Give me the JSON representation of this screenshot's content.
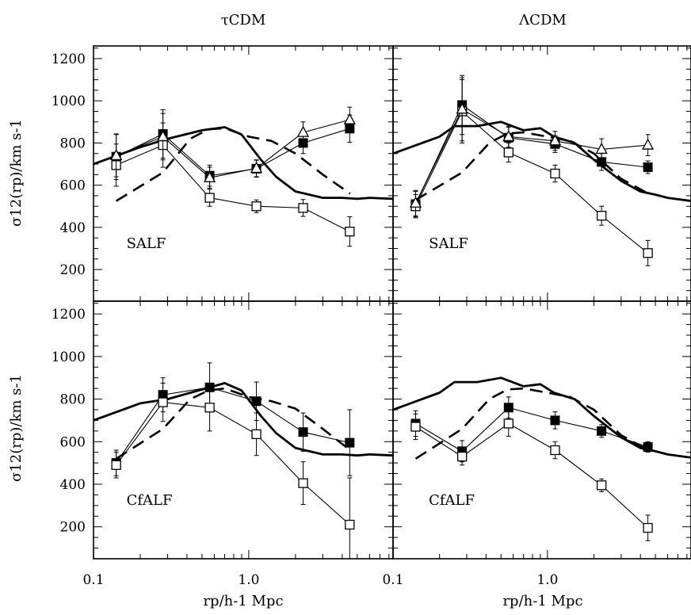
{
  "header": {
    "left_title": "τCDM",
    "right_title": "ΛCDM"
  },
  "axes": {
    "ylabel": "σ12(rp)/km s-1",
    "xlabel": "rp/h-1 Mpc",
    "x_ticklabels": [
      "0.1",
      "1.0",
      "0.1",
      "1.0"
    ],
    "y_ticklabels": [
      "200",
      "400",
      "600",
      "800",
      "1000",
      "1200"
    ],
    "xscale": "log",
    "xlim": [
      0.1,
      8.5
    ],
    "ylim": [
      50,
      1260
    ]
  },
  "chart_data": [
    {
      "type": "line",
      "model": "τCDM",
      "label": "SALF",
      "curves": {
        "solid": [
          [
            0.1,
            700
          ],
          [
            0.2,
            780
          ],
          [
            0.3,
            820
          ],
          [
            0.5,
            860
          ],
          [
            0.7,
            875
          ],
          [
            0.9,
            840
          ],
          [
            1.2,
            720
          ],
          [
            1.5,
            640
          ],
          [
            2.0,
            570
          ],
          [
            3.0,
            540
          ],
          [
            4.0,
            540
          ],
          [
            5.0,
            535
          ],
          [
            6.0,
            540
          ],
          [
            8.5,
            535
          ]
        ],
        "dashed": [
          [
            0.14,
            525
          ],
          [
            0.28,
            660
          ],
          [
            0.42,
            820
          ],
          [
            0.55,
            865
          ],
          [
            0.7,
            870
          ],
          [
            1.0,
            830
          ],
          [
            1.4,
            810
          ],
          [
            2.0,
            750
          ],
          [
            3.0,
            650
          ],
          [
            4.5,
            560
          ]
        ]
      },
      "series": [
        {
          "marker": "filled-square",
          "x": [
            0.14,
            0.28,
            0.56,
            1.12,
            2.24,
            4.47
          ],
          "y": [
            735,
            843,
            645,
            678,
            800,
            868
          ],
          "err": [
            108,
            115,
            50,
            40,
            50,
            65
          ]
        },
        {
          "marker": "open-square",
          "x": [
            0.14,
            0.28,
            0.56,
            1.12,
            2.24,
            4.47
          ],
          "y": [
            695,
            790,
            540,
            500,
            492,
            380
          ],
          "err": [
            100,
            105,
            40,
            30,
            40,
            70
          ]
        },
        {
          "marker": "open-triangle",
          "x": [
            0.14,
            0.28,
            0.56,
            1.12,
            2.24,
            4.47
          ],
          "y": [
            740,
            830,
            635,
            680,
            850,
            910
          ],
          "err": [
            100,
            110,
            50,
            40,
            50,
            60
          ]
        }
      ]
    },
    {
      "type": "line",
      "model": "ΛCDM",
      "label": "SALF",
      "curves": {
        "solid": [
          [
            0.1,
            750
          ],
          [
            0.2,
            830
          ],
          [
            0.25,
            880
          ],
          [
            0.35,
            880
          ],
          [
            0.5,
            900
          ],
          [
            0.7,
            860
          ],
          [
            0.9,
            870
          ],
          [
            1.1,
            830
          ],
          [
            1.5,
            800
          ],
          [
            2.0,
            720
          ],
          [
            3.0,
            620
          ],
          [
            4.0,
            570
          ],
          [
            5.0,
            555
          ],
          [
            6.0,
            540
          ],
          [
            8.5,
            525
          ]
        ],
        "dashed": [
          [
            0.14,
            530
          ],
          [
            0.28,
            660
          ],
          [
            0.42,
            800
          ],
          [
            0.55,
            845
          ],
          [
            0.7,
            850
          ],
          [
            1.0,
            830
          ],
          [
            1.4,
            810
          ],
          [
            2.0,
            750
          ],
          [
            3.0,
            630
          ],
          [
            4.5,
            560
          ]
        ]
      },
      "series": [
        {
          "marker": "filled-square",
          "x": [
            0.14,
            0.28,
            0.56,
            1.12,
            2.24,
            4.47
          ],
          "y": [
            510,
            980,
            825,
            795,
            710,
            685
          ],
          "err": [
            60,
            140,
            50,
            40,
            40,
            30
          ]
        },
        {
          "marker": "open-square",
          "x": [
            0.14,
            0.28,
            0.56,
            1.12,
            2.24,
            4.47
          ],
          "y": [
            500,
            950,
            755,
            655,
            455,
            278
          ],
          "err": [
            55,
            150,
            45,
            40,
            45,
            60
          ]
        },
        {
          "marker": "open-triangle",
          "x": [
            0.14,
            0.28,
            0.56,
            1.12,
            2.24,
            4.47
          ],
          "y": [
            515,
            960,
            830,
            810,
            770,
            790
          ],
          "err": [
            60,
            150,
            50,
            45,
            50,
            50
          ]
        }
      ]
    },
    {
      "type": "line",
      "model": "τCDM",
      "label": "CfALF",
      "curves": {
        "solid": [
          [
            0.1,
            700
          ],
          [
            0.2,
            780
          ],
          [
            0.3,
            800
          ],
          [
            0.5,
            845
          ],
          [
            0.7,
            875
          ],
          [
            0.9,
            840
          ],
          [
            1.2,
            720
          ],
          [
            1.5,
            640
          ],
          [
            2.0,
            570
          ],
          [
            3.0,
            540
          ],
          [
            4.0,
            540
          ],
          [
            5.0,
            535
          ],
          [
            6.0,
            540
          ],
          [
            8.5,
            535
          ]
        ],
        "dashed": [
          [
            0.14,
            520
          ],
          [
            0.28,
            660
          ],
          [
            0.42,
            800
          ],
          [
            0.55,
            840
          ],
          [
            0.7,
            850
          ],
          [
            1.0,
            810
          ],
          [
            1.4,
            790
          ],
          [
            2.0,
            755
          ],
          [
            3.0,
            660
          ],
          [
            4.5,
            560
          ]
        ]
      },
      "series": [
        {
          "marker": "filled-square",
          "x": [
            0.14,
            0.28,
            0.56,
            1.12,
            2.24,
            4.47
          ],
          "y": [
            500,
            820,
            855,
            790,
            645,
            595
          ],
          "err": [
            60,
            80,
            115,
            90,
            90,
            155
          ]
        },
        {
          "marker": "open-square",
          "x": [
            0.14,
            0.28,
            0.56,
            1.12,
            2.24,
            4.47
          ],
          "y": [
            490,
            785,
            760,
            635,
            405,
            210
          ],
          "err": [
            60,
            90,
            110,
            100,
            100,
            220
          ]
        }
      ]
    },
    {
      "type": "line",
      "model": "ΛCDM",
      "label": "CfALF",
      "curves": {
        "solid": [
          [
            0.1,
            750
          ],
          [
            0.2,
            830
          ],
          [
            0.25,
            880
          ],
          [
            0.35,
            880
          ],
          [
            0.5,
            900
          ],
          [
            0.7,
            860
          ],
          [
            0.9,
            870
          ],
          [
            1.1,
            830
          ],
          [
            1.5,
            800
          ],
          [
            2.0,
            720
          ],
          [
            3.0,
            620
          ],
          [
            4.0,
            570
          ],
          [
            5.0,
            555
          ],
          [
            6.0,
            540
          ],
          [
            8.5,
            525
          ]
        ],
        "dashed": [
          [
            0.14,
            520
          ],
          [
            0.28,
            660
          ],
          [
            0.42,
            800
          ],
          [
            0.55,
            845
          ],
          [
            0.7,
            850
          ],
          [
            1.0,
            830
          ],
          [
            1.4,
            810
          ],
          [
            2.0,
            750
          ],
          [
            3.0,
            630
          ],
          [
            4.5,
            560
          ]
        ]
      },
      "series": [
        {
          "marker": "filled-square",
          "x": [
            0.14,
            0.28,
            0.56,
            1.12,
            2.24,
            4.47
          ],
          "y": [
            685,
            555,
            760,
            700,
            650,
            575
          ],
          "err": [
            60,
            50,
            50,
            40,
            30,
            25
          ]
        },
        {
          "marker": "open-square",
          "x": [
            0.14,
            0.28,
            0.56,
            1.12,
            2.24,
            4.47
          ],
          "y": [
            670,
            530,
            685,
            560,
            395,
            195
          ],
          "err": [
            60,
            40,
            60,
            40,
            30,
            60
          ]
        }
      ]
    }
  ]
}
